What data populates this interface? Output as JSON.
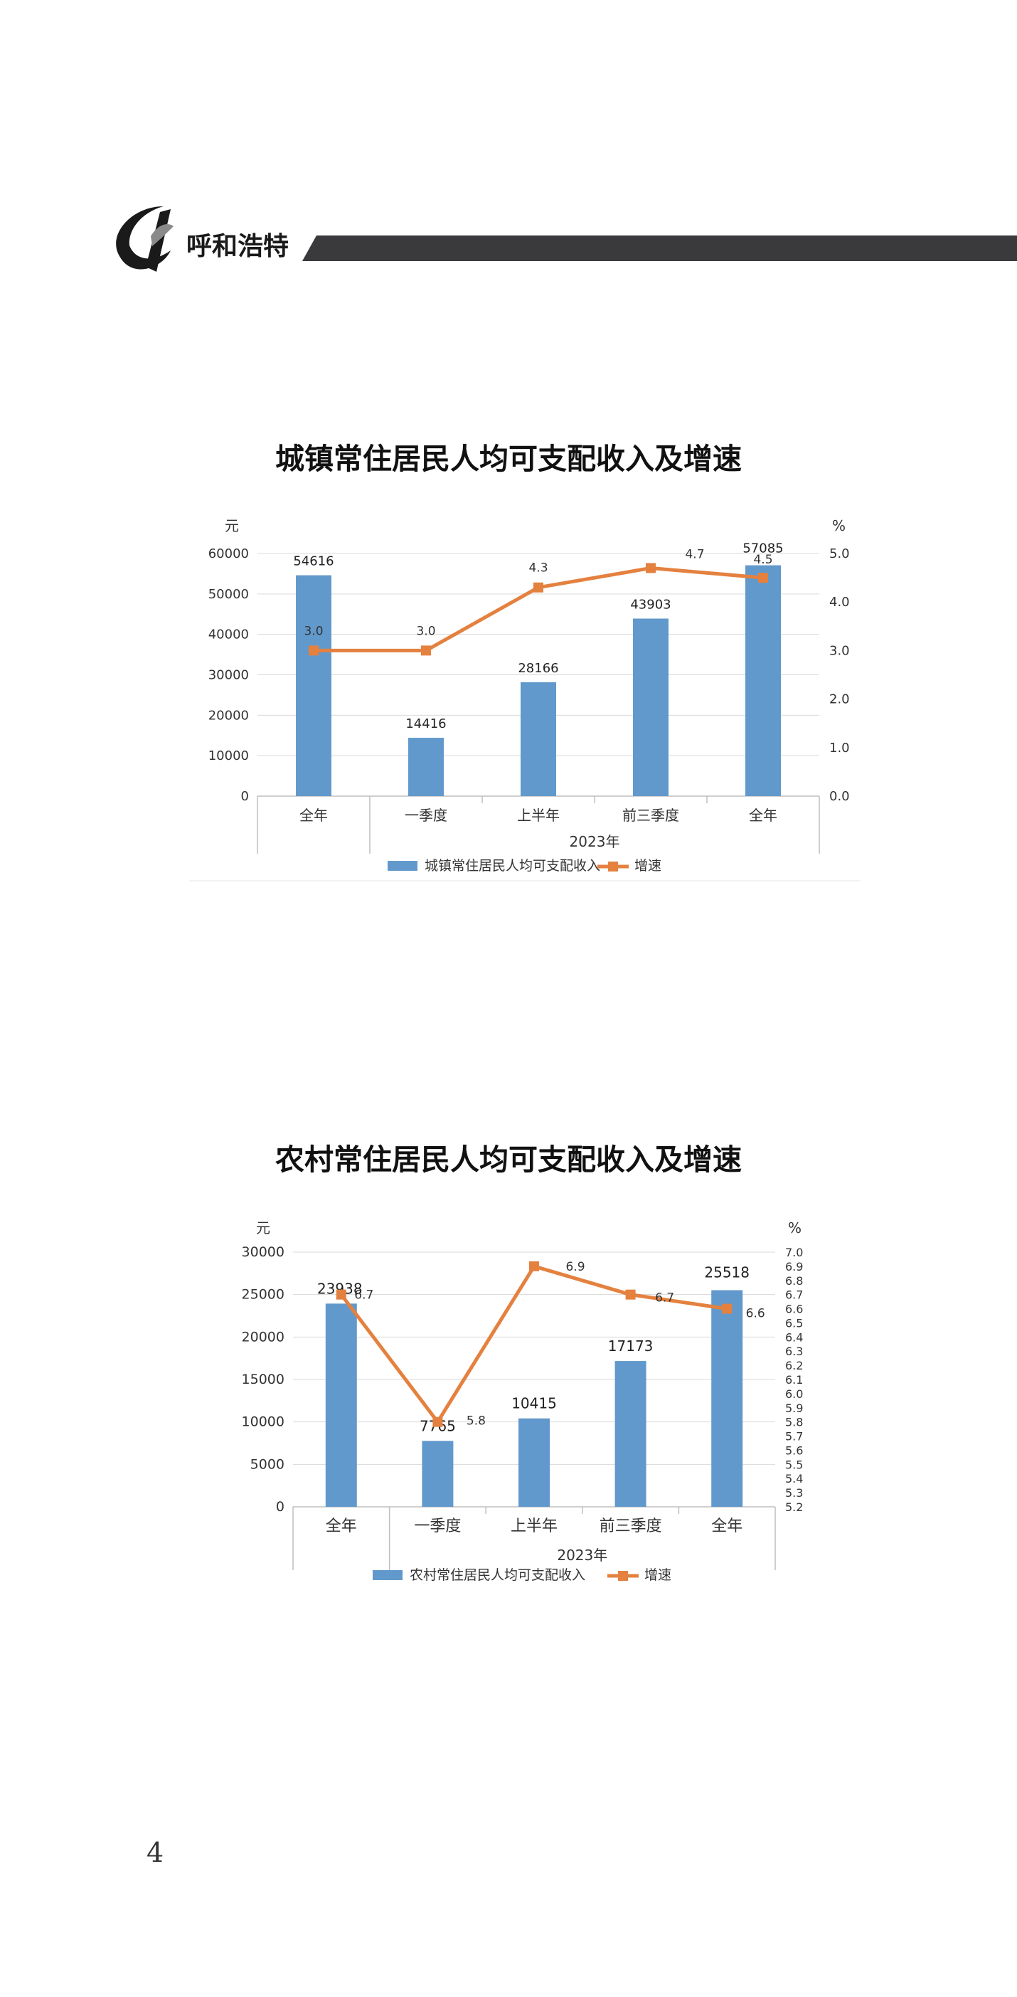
{
  "header": {
    "logo_text": "呼和浩特",
    "colors": {
      "band": "#3a3a3c",
      "logo": "#1a1a1a"
    }
  },
  "page_number": "4",
  "chart_data": [
    {
      "type": "bar",
      "title": "城镇常住居民人均可支配收入及增速",
      "categories": [
        "全年",
        "一季度",
        "上半年",
        "前三季度",
        "全年"
      ],
      "group_label": "2023年",
      "group_start_index": 1,
      "left_axis_unit": "元",
      "right_axis_unit": "%",
      "left_ticks": [
        "0",
        "10000",
        "20000",
        "30000",
        "40000",
        "50000",
        "60000"
      ],
      "right_ticks": [
        "0.0",
        "1.0",
        "2.0",
        "3.0",
        "4.0",
        "5.0"
      ],
      "ylim_left": [
        0,
        60000
      ],
      "ylim_right": [
        0,
        5
      ],
      "grid": true,
      "legend_position": "bottom",
      "series": [
        {
          "name": "城镇常住居民人均可支配收入",
          "kind": "bar",
          "axis": "left",
          "color": "#6299cc",
          "values": [
            54616,
            14416,
            28166,
            43903,
            57085
          ],
          "labels": [
            "54616",
            "14416",
            "28166",
            "43903",
            "57085"
          ]
        },
        {
          "name": "增速",
          "kind": "line",
          "axis": "right",
          "color": "#e4813f",
          "values": [
            3.0,
            3.0,
            4.3,
            4.7,
            4.5
          ],
          "labels": [
            "3.0",
            "3.0",
            "4.3",
            "4.7",
            "4.5"
          ]
        }
      ]
    },
    {
      "type": "bar",
      "title": "农村常住居民人均可支配收入及增速",
      "categories": [
        "全年",
        "一季度",
        "上半年",
        "前三季度",
        "全年"
      ],
      "group_label": "2023年",
      "group_start_index": 1,
      "left_axis_unit": "元",
      "right_axis_unit": "%",
      "left_ticks": [
        "0",
        "5000",
        "10000",
        "15000",
        "20000",
        "25000",
        "30000"
      ],
      "right_ticks": [
        "5.2",
        "5.3",
        "5.4",
        "5.5",
        "5.6",
        "5.7",
        "5.8",
        "5.9",
        "6.0",
        "6.1",
        "6.2",
        "6.3",
        "6.4",
        "6.5",
        "6.6",
        "6.7",
        "6.8",
        "6.9",
        "7.0"
      ],
      "ylim_left": [
        0,
        30000
      ],
      "ylim_right": [
        5.2,
        7.0
      ],
      "grid": true,
      "legend_position": "bottom",
      "series": [
        {
          "name": "农村常住居民人均可支配收入",
          "kind": "bar",
          "axis": "left",
          "color": "#6299cc",
          "values": [
            23938,
            7765,
            10415,
            17173,
            25518
          ],
          "labels": [
            "23938",
            "7765",
            "10415",
            "17173",
            "25518"
          ]
        },
        {
          "name": "增速",
          "kind": "line",
          "axis": "right",
          "color": "#e4813f",
          "values": [
            6.7,
            5.8,
            6.9,
            6.7,
            6.6
          ],
          "labels": [
            "6.7",
            "5.8",
            "6.9",
            "6.7",
            "6.6"
          ]
        }
      ]
    }
  ]
}
